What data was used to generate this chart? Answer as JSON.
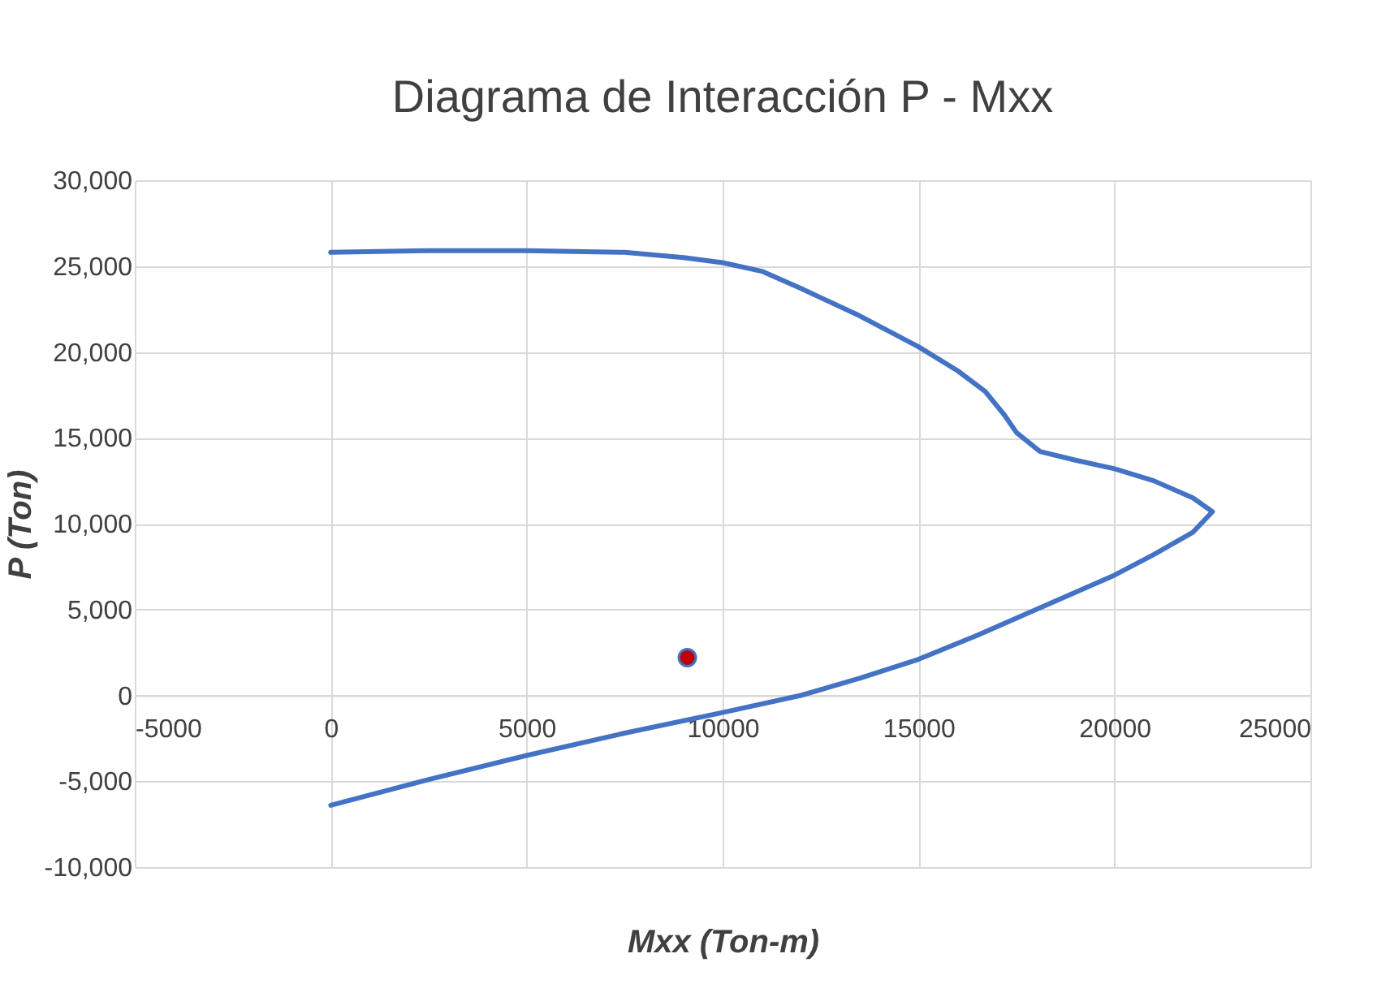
{
  "chart_data": {
    "type": "line",
    "title": "Diagrama de Interacción P - Mxx",
    "xlabel": "Mxx (Ton-m)",
    "ylabel": "P (Ton)",
    "xlim": [
      -5000,
      25000
    ],
    "xticks": [
      {
        "value": -5000,
        "label": "-5000"
      },
      0,
      5000,
      10000,
      15000,
      20000,
      25000
    ],
    "ylim": [
      -10000,
      30000
    ],
    "yticks": [
      {
        "value": -10000,
        "label": "-10,000"
      },
      {
        "value": -5000,
        "label": "-5,000"
      },
      0,
      {
        "value": 5000,
        "label": "5,000"
      },
      {
        "value": 10000,
        "label": "10,000"
      },
      {
        "value": 15000,
        "label": "15,000"
      },
      {
        "value": 20000,
        "label": "20,000"
      },
      {
        "value": 25000,
        "label": "25,000"
      },
      {
        "value": 30000,
        "label": "30,000"
      }
    ],
    "grid": true,
    "line_style": "solid",
    "series": [
      {
        "color": "#4472c4",
        "x": [
          0,
          2500,
          5000,
          7500,
          9000,
          10000,
          11000,
          12000,
          13500,
          15000,
          16000,
          16700,
          17200,
          17500,
          18100,
          19000,
          20000,
          21000,
          22000,
          22500,
          22000,
          21000,
          20000,
          18000,
          16500,
          15000,
          13500,
          12000,
          10000,
          7500,
          5000,
          2500,
          0
        ],
        "values": [
          25800,
          25900,
          25900,
          25800,
          25500,
          25200,
          24700,
          23700,
          22100,
          20300,
          18900,
          17700,
          16300,
          15300,
          14200,
          13700,
          13200,
          12500,
          11500,
          10700,
          9500,
          8200,
          7000,
          5000,
          3500,
          2100,
          1000,
          0,
          -1000,
          -2200,
          -3500,
          -4900,
          -6400
        ]
      },
      {
        "type": "scatter",
        "color": "#c00000",
        "x": [
          9100
        ],
        "values": [
          2200
        ]
      }
    ]
  }
}
